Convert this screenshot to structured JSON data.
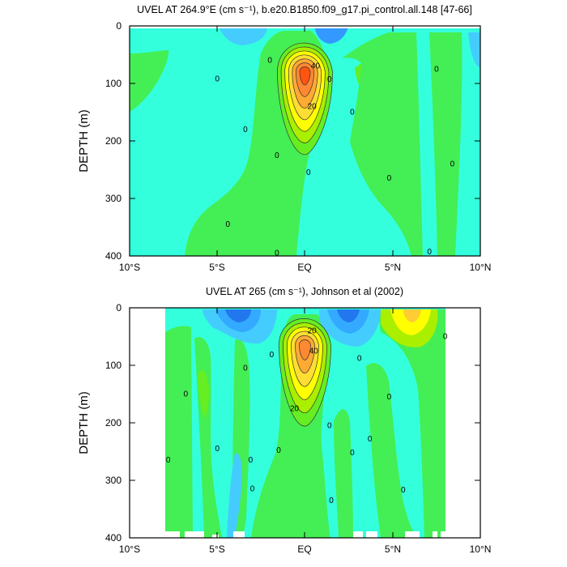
{
  "chart_data": [
    {
      "type": "heatmap",
      "title": "UVEL AT 264.9°E (cm s⁻¹), b.e20.B1850.f09_g17.pi_control.all.148 [47-66]",
      "xlabel": "",
      "ylabel": "DEPTH (m)",
      "x_ticks": [
        "10°S",
        "5°S",
        "EQ",
        "5°N",
        "10°N"
      ],
      "y_ticks": [
        "0",
        "100",
        "200",
        "300",
        "400"
      ],
      "xlim": [
        -10,
        10
      ],
      "ylim": [
        400,
        0
      ],
      "levels": [
        -20,
        -10,
        0,
        10,
        20,
        30,
        40,
        50,
        60,
        70
      ],
      "core": {
        "lat": 0,
        "depth": 80,
        "max": 70
      },
      "contour_labels": [
        {
          "text": "0",
          "lat": -2.0,
          "depth": 60
        },
        {
          "text": "0",
          "lat": -5.0,
          "depth": 92
        },
        {
          "text": "0",
          "lat": -3.4,
          "depth": 180
        },
        {
          "text": "0",
          "lat": -1.6,
          "depth": 225
        },
        {
          "text": "0",
          "lat": 0.2,
          "depth": 255
        },
        {
          "text": "0",
          "lat": -4.4,
          "depth": 345
        },
        {
          "text": "0",
          "lat": -1.6,
          "depth": 395
        },
        {
          "text": "0",
          "lat": 1.4,
          "depth": 93
        },
        {
          "text": "0",
          "lat": 2.7,
          "depth": 150
        },
        {
          "text": "0",
          "lat": 4.8,
          "depth": 265
        },
        {
          "text": "0",
          "lat": 7.5,
          "depth": 75
        },
        {
          "text": "0",
          "lat": 8.4,
          "depth": 240
        },
        {
          "text": "0",
          "lat": 7.1,
          "depth": 393
        },
        {
          "text": "40",
          "lat": 0.6,
          "depth": 70
        },
        {
          "text": "20",
          "lat": 0.4,
          "depth": 140
        }
      ]
    },
    {
      "type": "heatmap",
      "title": "UVEL AT 265 (cm s⁻¹), Johnson et al (2002)",
      "xlabel": "",
      "ylabel": "DEPTH (m)",
      "x_ticks": [
        "10°S",
        "5°S",
        "EQ",
        "5°N",
        "10°N"
      ],
      "y_ticks": [
        "0",
        "100",
        "200",
        "300",
        "400"
      ],
      "xlim": [
        -10,
        10
      ],
      "ylim": [
        400,
        0
      ],
      "levels": [
        -20,
        -10,
        0,
        10,
        20,
        30,
        40,
        50,
        60
      ],
      "core": {
        "lat": 0,
        "depth": 65,
        "max": 60
      },
      "contour_labels": [
        {
          "text": "0",
          "lat": -6.8,
          "depth": 150
        },
        {
          "text": "0",
          "lat": -7.8,
          "depth": 265
        },
        {
          "text": "0",
          "lat": -5.0,
          "depth": 245
        },
        {
          "text": "0",
          "lat": -3.4,
          "depth": 105
        },
        {
          "text": "0",
          "lat": -3.1,
          "depth": 265
        },
        {
          "text": "0",
          "lat": -3.0,
          "depth": 315
        },
        {
          "text": "0",
          "lat": -1.9,
          "depth": 82
        },
        {
          "text": "0",
          "lat": -1.5,
          "depth": 248
        },
        {
          "text": "0",
          "lat": 1.4,
          "depth": 205
        },
        {
          "text": "0",
          "lat": 1.5,
          "depth": 335
        },
        {
          "text": "0",
          "lat": 3.1,
          "depth": 88
        },
        {
          "text": "0",
          "lat": 2.7,
          "depth": 252
        },
        {
          "text": "0",
          "lat": 3.7,
          "depth": 228
        },
        {
          "text": "0",
          "lat": 4.8,
          "depth": 155
        },
        {
          "text": "0",
          "lat": 5.6,
          "depth": 317
        },
        {
          "text": "0",
          "lat": 8.0,
          "depth": 50
        },
        {
          "text": "20",
          "lat": 0.4,
          "depth": 40
        },
        {
          "text": "40",
          "lat": 0.5,
          "depth": 75
        },
        {
          "text": "20",
          "lat": -0.6,
          "depth": 175
        }
      ]
    }
  ]
}
